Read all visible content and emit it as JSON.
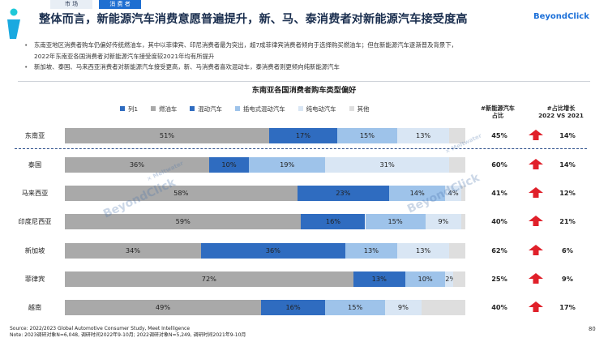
{
  "header": {
    "tabs": [
      {
        "label": "市  场"
      },
      {
        "label": "消 费 者"
      }
    ],
    "title": "整体而言，新能源汽车消费意愿普遍提升，新、马、泰消费者对新能源汽车接受度高",
    "brand": "BeyondClick"
  },
  "bullets": [
    {
      "text": "东南亚地区消费者购车仍偏好传统燃油车，其中以菲律宾、印尼消费者最为突出，超7成菲律宾消费者倾向于选择购买燃油车；但在新能源汽车逐渐普及背景下，"
    },
    {
      "text": "2022年东南亚各国消费者对新能源汽车接受度较2021年均有所提升",
      "continuation": true
    },
    {
      "text": "新加坡、泰国、马来西亚消费者对新能源汽车接受更高，新、马消费者喜欢混动车，泰消费者则更倾向纯新能源汽车"
    }
  ],
  "chart_data": {
    "type": "bar",
    "orientation": "horizontal",
    "stacked": true,
    "title": "东南亚各国消费者购车类型偏好",
    "legend": [
      "列1",
      "燃油车",
      "混动汽车",
      "插电式混动汽车",
      "纯电动汽车",
      "其他"
    ],
    "legend_colors": [
      "#2f6cc0",
      "#a9a9a9",
      "#2f6cc0",
      "#9ec3ea",
      "#d9e6f4",
      "#dedede"
    ],
    "series_keys": [
      "fuel",
      "hybrid",
      "plugin",
      "ev",
      "other"
    ],
    "series_colors": [
      "#a9a9a9",
      "#2f6cc0",
      "#9ec3ea",
      "#d9e6f4",
      "#dedede"
    ],
    "categories": [
      "东南亚",
      "泰国",
      "马来西亚",
      "印度尼西亚",
      "新加坡",
      "菲律宾",
      "越南"
    ],
    "series": [
      {
        "name": "燃油车",
        "values": [
          51,
          36,
          58,
          59,
          34,
          72,
          49
        ]
      },
      {
        "name": "混动汽车",
        "values": [
          17,
          10,
          23,
          16,
          36,
          13,
          16
        ]
      },
      {
        "name": "插电式混动汽车",
        "values": [
          15,
          19,
          14,
          15,
          13,
          10,
          15
        ]
      },
      {
        "name": "纯电动汽车",
        "values": [
          13,
          31,
          4,
          9,
          13,
          2,
          9
        ]
      },
      {
        "name": "其他",
        "values": [
          4,
          4,
          1,
          1,
          4,
          3,
          11
        ]
      }
    ],
    "labels": [
      [
        "51%",
        "17%",
        "15%",
        "13%",
        ""
      ],
      [
        "36%",
        "10%",
        "19%",
        "31%",
        ""
      ],
      [
        "58%",
        "23%",
        "14%",
        "4%",
        ""
      ],
      [
        "59%",
        "16%",
        "15%",
        "9%",
        ""
      ],
      [
        "34%",
        "36%",
        "13%",
        "13%",
        ""
      ],
      [
        "72%",
        "13%",
        "10%",
        "2%",
        ""
      ],
      [
        "49%",
        "16%",
        "15%",
        "9%",
        ""
      ]
    ],
    "col_nev_header": [
      "#新能源汽车",
      "占比"
    ],
    "col_growth_header": [
      "#占比增长",
      "2022 VS 2021"
    ],
    "nev_share": [
      "45%",
      "60%",
      "41%",
      "40%",
      "62%",
      "25%",
      "40%"
    ],
    "growth": [
      "14%",
      "14%",
      "12%",
      "21%",
      "6%",
      "9%",
      "17%"
    ],
    "arrow_color": "#e0202a"
  },
  "watermark": {
    "text": "BeyondClick",
    "subtext": "× Meltwater"
  },
  "footer": {
    "source": "Source: 2022/2023 Global Automotive Consumer Study, Meet Intelligence",
    "note": "Note: 2023调研对象N=6,048, 调研时间2022年9-10月; 2022调研对象N=5,249, 调研时间2021年9-10月",
    "page": "80"
  }
}
